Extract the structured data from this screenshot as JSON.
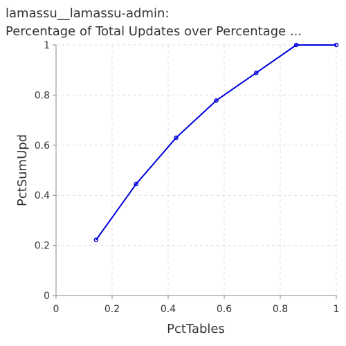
{
  "chart_data": {
    "type": "line",
    "title_line1": "lamassu__lamassu-admin:",
    "title_line2": "Percentage of Total Updates over Percentage ...",
    "xlabel": "PctTables",
    "ylabel": "PctSumUpd",
    "xlim": [
      0,
      1
    ],
    "ylim": [
      0,
      1
    ],
    "x_ticks": [
      "0",
      "0.2",
      "0.4",
      "0.6",
      "0.8",
      "1"
    ],
    "y_ticks": [
      "0",
      "0.2",
      "0.4",
      "0.6",
      "0.8",
      "1"
    ],
    "grid": true,
    "series": [
      {
        "color": "#0000dd",
        "x": [
          0.1429,
          0.2857,
          0.4286,
          0.5714,
          0.7143,
          0.8571,
          1.0
        ],
        "y": [
          0.222,
          0.445,
          0.63,
          0.778,
          0.889,
          1.0,
          1.0
        ]
      }
    ]
  }
}
